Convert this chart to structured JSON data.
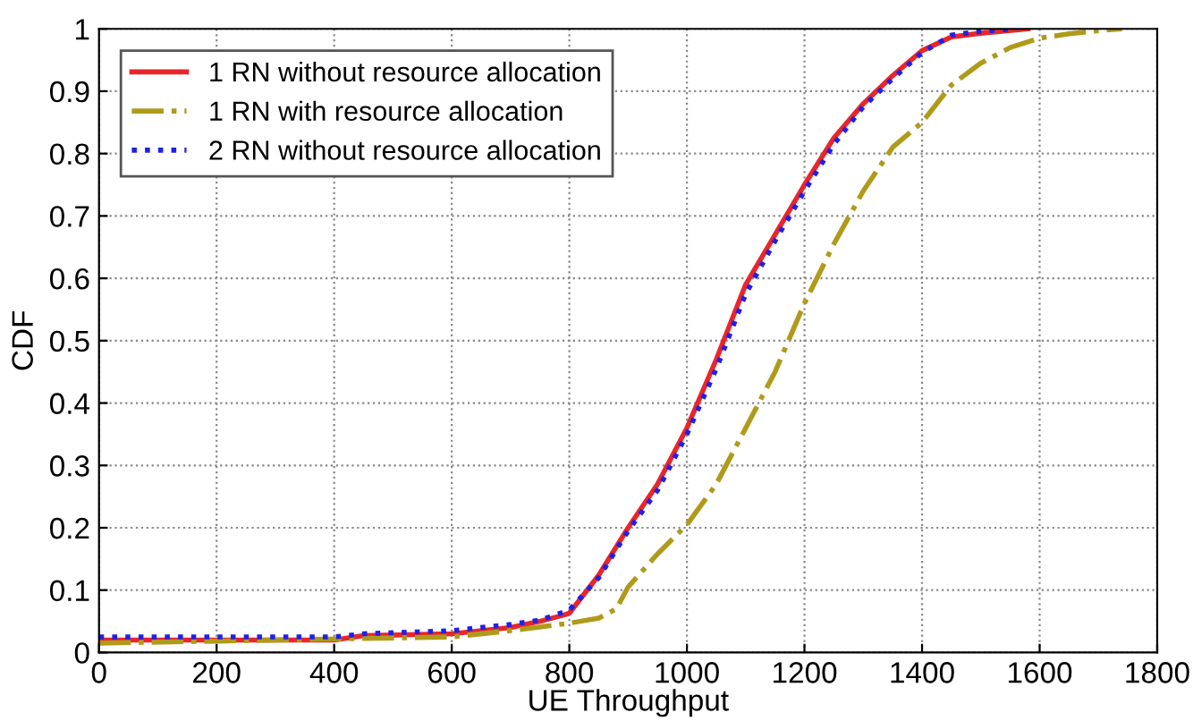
{
  "chart_data": {
    "type": "line",
    "xlabel": "UE Throughput",
    "ylabel": "CDF",
    "xlim": [
      0,
      1800
    ],
    "xticks": [
      0,
      200,
      400,
      600,
      800,
      1000,
      1200,
      1400,
      1600,
      1800
    ],
    "ylim": [
      0,
      1
    ],
    "yticks": [
      0,
      0.1,
      0.2,
      0.3,
      0.4,
      0.5,
      0.6,
      0.7,
      0.8,
      0.9,
      1
    ],
    "grid": true,
    "legend": "top left",
    "marker": "none",
    "series": [
      {
        "name": "1 RN without resource allocation",
        "color": "#e8262b",
        "line_style": "solid",
        "x": [
          0,
          400,
          450,
          600,
          700,
          750,
          790,
          800,
          850,
          900,
          950,
          1000,
          1050,
          1100,
          1150,
          1200,
          1250,
          1300,
          1350,
          1400,
          1450,
          1500,
          1580
        ],
        "values": [
          0.02,
          0.02,
          0.027,
          0.03,
          0.04,
          0.05,
          0.06,
          0.063,
          0.124,
          0.2,
          0.27,
          0.36,
          0.47,
          0.59,
          0.67,
          0.75,
          0.825,
          0.88,
          0.925,
          0.965,
          0.987,
          0.993,
          1.0
        ]
      },
      {
        "name": "1 RN with resource allocation",
        "color": "#b09a1a",
        "line_style": "dashdot",
        "x": [
          0,
          600,
          700,
          800,
          850,
          880,
          900,
          950,
          1000,
          1050,
          1100,
          1150,
          1200,
          1250,
          1300,
          1350,
          1400,
          1450,
          1500,
          1550,
          1600,
          1650,
          1700,
          1740
        ],
        "values": [
          0.015,
          0.025,
          0.035,
          0.047,
          0.055,
          0.07,
          0.105,
          0.158,
          0.205,
          0.27,
          0.36,
          0.45,
          0.56,
          0.655,
          0.74,
          0.81,
          0.85,
          0.91,
          0.945,
          0.97,
          0.985,
          0.992,
          0.997,
          1.0
        ]
      },
      {
        "name": "2 RN without resource allocation",
        "color": "#2020e8",
        "line_style": "dotted",
        "x": [
          0,
          400,
          450,
          600,
          700,
          750,
          800,
          850,
          900,
          950,
          1000,
          1050,
          1100,
          1150,
          1200,
          1250,
          1300,
          1350,
          1400,
          1450,
          1500,
          1560
        ],
        "values": [
          0.025,
          0.025,
          0.03,
          0.035,
          0.045,
          0.052,
          0.068,
          0.12,
          0.195,
          0.26,
          0.35,
          0.455,
          0.575,
          0.66,
          0.74,
          0.815,
          0.875,
          0.92,
          0.962,
          0.99,
          0.996,
          1.0
        ]
      }
    ]
  }
}
